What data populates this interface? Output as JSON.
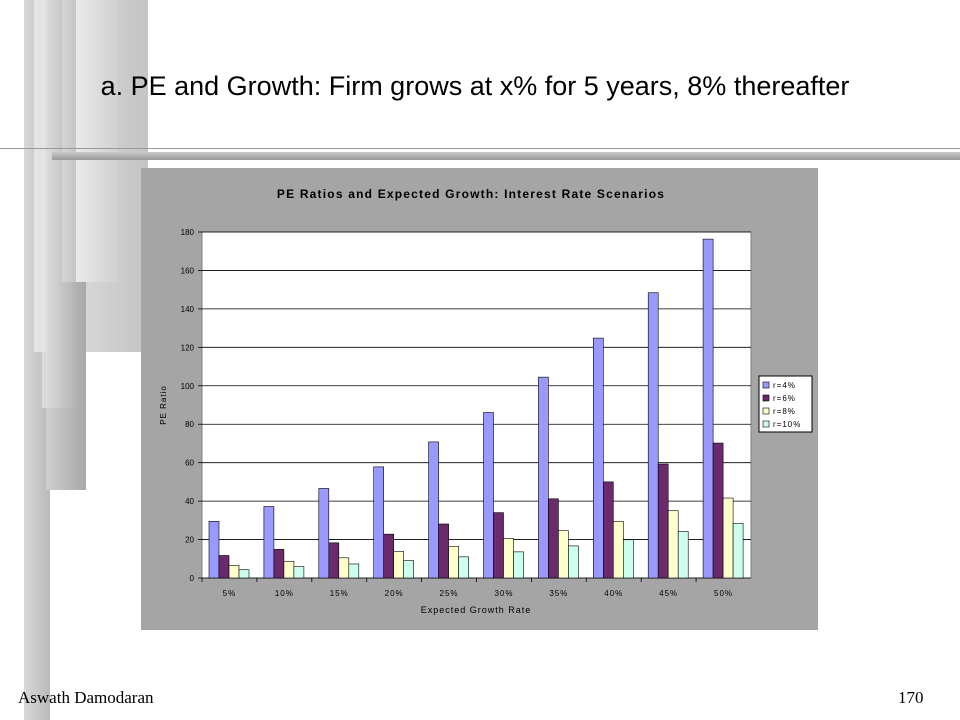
{
  "slide": {
    "title": "a. PE and Growth: Firm grows at x% for 5 years, 8% thereafter",
    "footer_left": "Aswath Damodaran",
    "footer_right": "170"
  },
  "chart_data": {
    "type": "bar",
    "title": "PE Ratios and Expected Growth: Interest Rate Scenarios",
    "xlabel": "Expected Growth Rate",
    "ylabel": "PE Ratio",
    "ylim": [
      0,
      180
    ],
    "yticks": [
      0,
      20,
      40,
      60,
      80,
      100,
      120,
      140,
      160,
      180
    ],
    "grid": true,
    "legend_position": "right",
    "categories": [
      "5%",
      "10%",
      "15%",
      "20%",
      "25%",
      "30%",
      "35%",
      "40%",
      "45%",
      "50%"
    ],
    "series": [
      {
        "name": "r=4%",
        "color": "#9999ff",
        "values": [
          29.5,
          37.2,
          46.6,
          57.8,
          70.8,
          86.1,
          104.5,
          124.8,
          148.4,
          176.3
        ]
      },
      {
        "name": "r=6%",
        "color": "#6b2a6b",
        "values": [
          11.7,
          14.9,
          18.3,
          22.8,
          28.1,
          34.0,
          41.2,
          50.0,
          59.3,
          70.2
        ]
      },
      {
        "name": "r=8%",
        "color": "#ffffcc",
        "values": [
          6.6,
          8.7,
          10.5,
          13.8,
          16.5,
          20.6,
          24.6,
          29.5,
          35.0,
          41.6
        ]
      },
      {
        "name": "r=10%",
        "color": "#ccffee",
        "values": [
          4.3,
          5.9,
          7.3,
          9.0,
          11.0,
          13.6,
          16.7,
          19.9,
          24.2,
          28.4
        ]
      }
    ]
  }
}
